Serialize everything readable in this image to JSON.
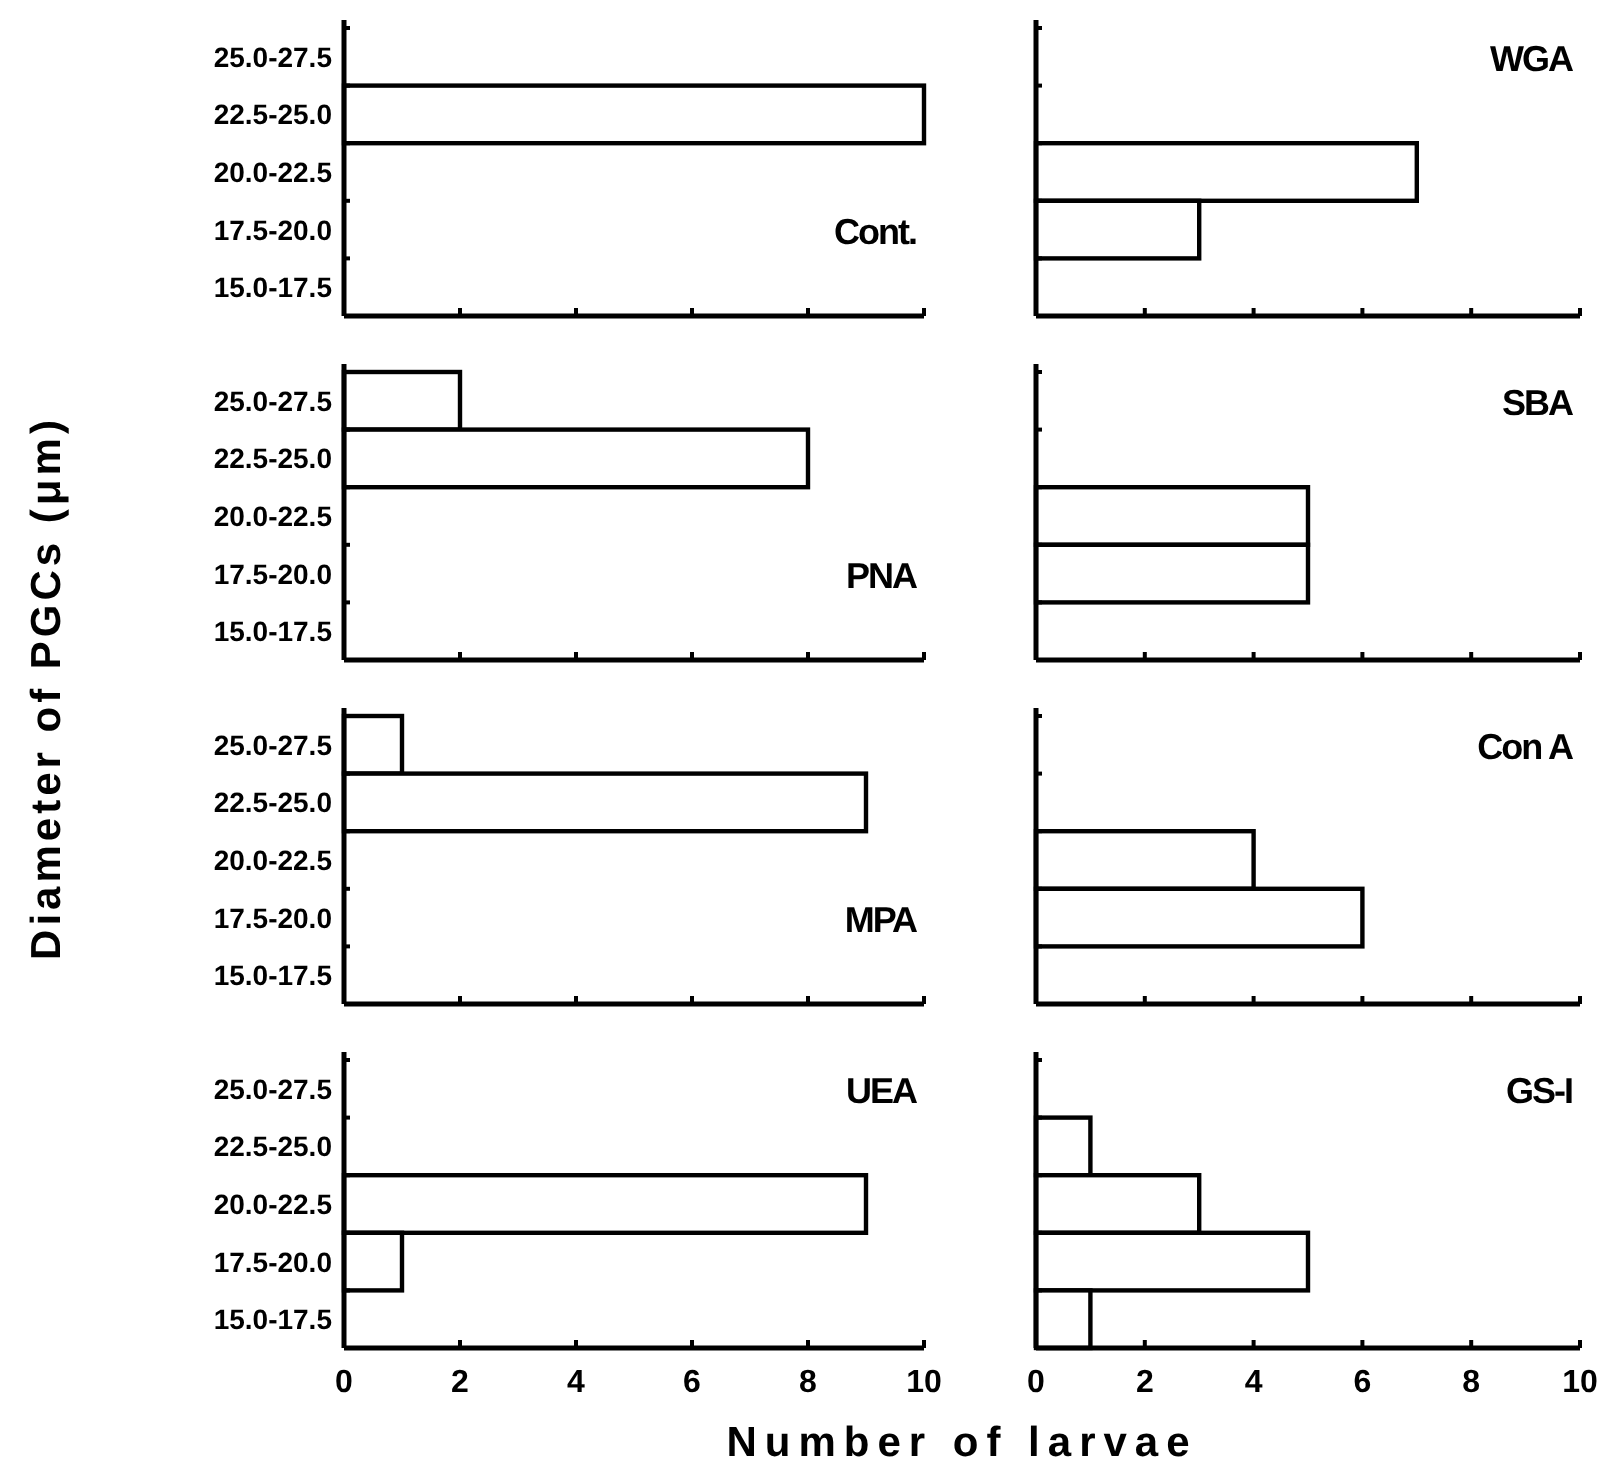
{
  "chart_data": [
    {
      "type": "bar",
      "orientation": "horizontal",
      "title": "Cont.",
      "ylabel": "Diameter of PGCs (μm)",
      "categories": [
        "25.0-27.5",
        "22.5-25.0",
        "20.0-22.5",
        "17.5-20.0",
        "15.0-17.5"
      ],
      "values": [
        null,
        10,
        null,
        null,
        null
      ],
      "color": "#ffffff",
      "xlim": [
        0,
        10
      ],
      "xticks": [
        0,
        2,
        4,
        6,
        8,
        10
      ],
      "tick_labels": "y",
      "grid": false
    },
    {
      "type": "bar",
      "orientation": "horizontal",
      "title": "WGA",
      "categories": [
        "25.0-27.5",
        "22.5-25.0",
        "20.0-22.5",
        "17.5-20.0",
        "15.0-17.5"
      ],
      "values": [
        null,
        null,
        7,
        3,
        null
      ],
      "color": "#ffffff",
      "xlim": [
        0,
        10
      ],
      "xticks": [
        0,
        2,
        4,
        6,
        8,
        10
      ],
      "tick_labels": false,
      "grid": false
    },
    {
      "type": "bar",
      "orientation": "horizontal",
      "title": "PNA",
      "categories": [
        "25.0-27.5",
        "22.5-25.0",
        "20.0-22.5",
        "17.5-20.0",
        "15.0-17.5"
      ],
      "values": [
        2,
        8,
        null,
        null,
        null
      ],
      "color": "#ffffff",
      "xlim": [
        0,
        10
      ],
      "xticks": [
        0,
        2,
        4,
        6,
        8,
        10
      ],
      "tick_labels": "y",
      "grid": false
    },
    {
      "type": "bar",
      "orientation": "horizontal",
      "title": "SBA",
      "categories": [
        "25.0-27.5",
        "22.5-25.0",
        "20.0-22.5",
        "17.5-20.0",
        "15.0-17.5"
      ],
      "values": [
        null,
        null,
        5,
        5,
        null
      ],
      "color": "#ffffff",
      "xlim": [
        0,
        10
      ],
      "xticks": [
        0,
        2,
        4,
        6,
        8,
        10
      ],
      "tick_labels": false,
      "grid": false
    },
    {
      "type": "bar",
      "orientation": "horizontal",
      "title": "MPA",
      "categories": [
        "25.0-27.5",
        "22.5-25.0",
        "20.0-22.5",
        "17.5-20.0",
        "15.0-17.5"
      ],
      "values": [
        1,
        9,
        null,
        null,
        null
      ],
      "color": "#ffffff",
      "xlim": [
        0,
        10
      ],
      "xticks": [
        0,
        2,
        4,
        6,
        8,
        10
      ],
      "tick_labels": "y",
      "grid": false
    },
    {
      "type": "bar",
      "orientation": "horizontal",
      "title": "Con A",
      "categories": [
        "25.0-27.5",
        "22.5-25.0",
        "20.0-22.5",
        "17.5-20.0",
        "15.0-17.5"
      ],
      "values": [
        null,
        null,
        4,
        6,
        null
      ],
      "color": "#ffffff",
      "xlim": [
        0,
        10
      ],
      "xticks": [
        0,
        2,
        4,
        6,
        8,
        10
      ],
      "tick_labels": false,
      "grid": false
    },
    {
      "type": "bar",
      "orientation": "horizontal",
      "title": "UEA",
      "xlabel": "Number of larvae",
      "categories": [
        "25.0-27.5",
        "22.5-25.0",
        "20.0-22.5",
        "17.5-20.0",
        "15.0-17.5"
      ],
      "values": [
        null,
        null,
        9,
        1,
        null
      ],
      "color": "#ffffff",
      "xlim": [
        0,
        10
      ],
      "xticks": [
        0,
        2,
        4,
        6,
        8,
        10
      ],
      "grid": false
    },
    {
      "type": "bar",
      "orientation": "horizontal",
      "title": "GS-I",
      "categories": [
        "25.0-27.5",
        "22.5-25.0",
        "20.0-22.5",
        "17.5-20.0",
        "15.0-17.5"
      ],
      "values": [
        null,
        1,
        3,
        5,
        1
      ],
      "color": "#ffffff",
      "xlim": [
        0,
        10
      ],
      "xticks": [
        0,
        2,
        4,
        6,
        8,
        10
      ],
      "tick_labels": "x",
      "grid": false
    }
  ]
}
